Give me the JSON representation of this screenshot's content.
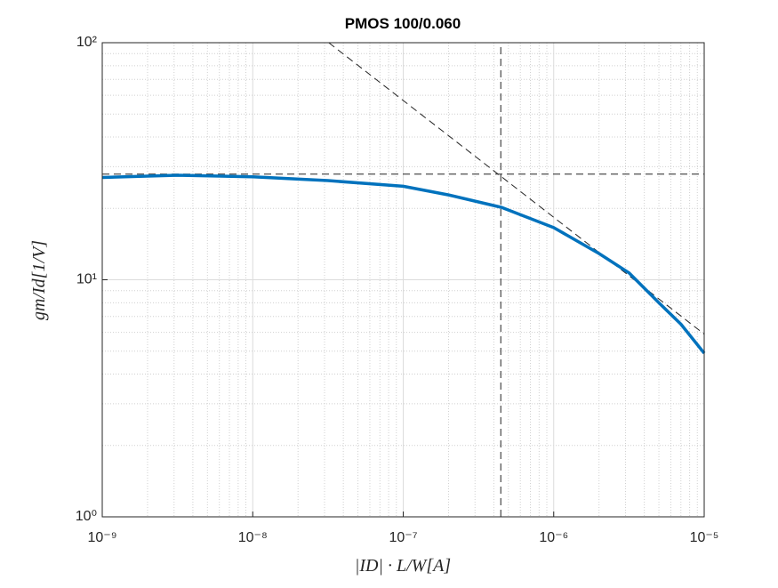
{
  "chart_data": {
    "type": "line",
    "title": "PMOS 100/0.060",
    "xlabel": "|ID| · L/W[A]",
    "ylabel": "gm/Id[1/V]",
    "xscale": "log",
    "yscale": "log",
    "grid": true,
    "minor_grid": true,
    "xlim": [
      1e-09,
      1e-05
    ],
    "ylim": [
      1,
      100
    ],
    "xticks": [
      {
        "value": 1e-09,
        "label": "10⁻⁹"
      },
      {
        "value": 1e-08,
        "label": "10⁻⁸"
      },
      {
        "value": 1e-07,
        "label": "10⁻⁷"
      },
      {
        "value": 1e-06,
        "label": "10⁻⁶"
      },
      {
        "value": 1e-05,
        "label": "10⁻⁵"
      }
    ],
    "yticks": [
      {
        "value": 1,
        "label": "10⁰"
      },
      {
        "value": 10,
        "label": "10¹"
      },
      {
        "value": 100,
        "label": "10²"
      }
    ],
    "x": [
      1e-09,
      3.16e-09,
      1e-08,
      3.16e-08,
      1e-07,
      2e-07,
      4.5e-07,
      1e-06,
      2e-06,
      3.16e-06,
      5e-06,
      7e-06,
      1e-05
    ],
    "series": [
      {
        "color": "#0072bd",
        "values": [
          27,
          27.6,
          27.2,
          26.2,
          24.8,
          22.8,
          20.2,
          16.6,
          12.9,
          10.7,
          8.0,
          6.5,
          4.9
        ]
      }
    ],
    "reference_lines": [
      {
        "x": [
          1e-09,
          1e-05
        ],
        "values": [
          27.9,
          27.9
        ],
        "color": "#222222",
        "dash": "8 5"
      },
      {
        "x": [
          4.45e-07,
          4.45e-07
        ],
        "values": [
          1,
          100
        ],
        "color": "#222222",
        "dash": "8 5"
      },
      {
        "x": [
          3.2e-08,
          1e-05
        ],
        "values": [
          100,
          5.9
        ],
        "color": "#222222",
        "dash": "8 5"
      }
    ]
  }
}
